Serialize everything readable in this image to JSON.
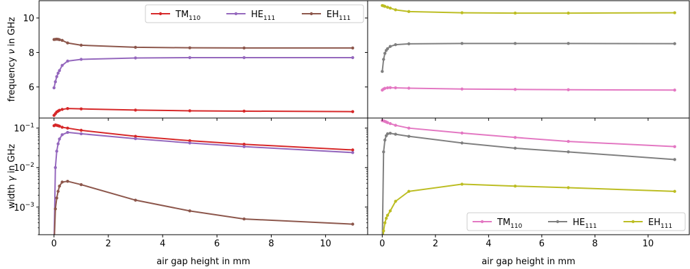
{
  "chart_data": [
    {
      "type": "line",
      "panel": "top-left",
      "ylabel": "frequency ν in GHz",
      "ylabel_main": "frequency ",
      "ylabel_symbol": "ν",
      "ylabel_tail": " in GHz",
      "xlabel": "",
      "xlim": [
        -0.55,
        11.55
      ],
      "ylim": [
        4.2,
        11.0
      ],
      "yscale": "linear",
      "yticks": [
        6,
        8,
        10
      ],
      "ytick_labels": [
        "6",
        "8",
        "10"
      ],
      "xticks": [
        0,
        2,
        4,
        6,
        8,
        10
      ],
      "xtick_labels": [],
      "legend": {
        "placement": "top-right",
        "ncol": 3
      },
      "series": [
        {
          "name": "TM",
          "name_sub": "110",
          "color": "#d62728",
          "x": [
            0.0,
            0.05,
            0.1,
            0.15,
            0.2,
            0.3,
            0.5,
            1,
            3,
            5,
            7,
            11
          ],
          "y": [
            4.35,
            4.45,
            4.55,
            4.6,
            4.65,
            4.7,
            4.75,
            4.73,
            4.66,
            4.62,
            4.6,
            4.57
          ]
        },
        {
          "name": "HE",
          "name_sub": "111",
          "color": "#9467bd",
          "x": [
            0.0,
            0.05,
            0.1,
            0.15,
            0.2,
            0.3,
            0.5,
            1,
            3,
            5,
            7,
            11
          ],
          "y": [
            5.95,
            6.3,
            6.6,
            6.8,
            6.95,
            7.25,
            7.5,
            7.6,
            7.68,
            7.7,
            7.7,
            7.7
          ]
        },
        {
          "name": "EH",
          "name_sub": "111",
          "color": "#8c564b",
          "x": [
            0.0,
            0.05,
            0.1,
            0.15,
            0.2,
            0.3,
            0.5,
            1,
            3,
            5,
            7,
            11
          ],
          "y": [
            8.75,
            8.76,
            8.77,
            8.76,
            8.74,
            8.7,
            8.55,
            8.42,
            8.3,
            8.27,
            8.26,
            8.26
          ]
        }
      ]
    },
    {
      "type": "line",
      "panel": "top-right",
      "ylabel": "",
      "xlabel": "",
      "xlim": [
        -0.55,
        11.55
      ],
      "ylim": [
        4.2,
        11.0
      ],
      "yscale": "linear",
      "yticks": [
        6,
        8,
        10
      ],
      "ytick_labels": [],
      "xticks": [
        0,
        2,
        4,
        6,
        8,
        10
      ],
      "xtick_labels": [],
      "series": [
        {
          "name": "TM",
          "name_sub": "110",
          "color": "#e377c2",
          "x": [
            0.0,
            0.05,
            0.1,
            0.2,
            0.3,
            0.5,
            1,
            3,
            5,
            7,
            11
          ],
          "y": [
            5.82,
            5.88,
            5.92,
            5.95,
            5.96,
            5.95,
            5.93,
            5.88,
            5.86,
            5.84,
            5.82
          ]
        },
        {
          "name": "HE",
          "name_sub": "111",
          "color": "#7f7f7f",
          "x": [
            0.0,
            0.05,
            0.1,
            0.15,
            0.2,
            0.3,
            0.5,
            1,
            3,
            5,
            7,
            11
          ],
          "y": [
            6.9,
            7.6,
            7.95,
            8.12,
            8.22,
            8.35,
            8.45,
            8.5,
            8.52,
            8.52,
            8.52,
            8.51
          ]
        },
        {
          "name": "EH",
          "name_sub": "111",
          "color": "#bcbd22",
          "x": [
            0.0,
            0.05,
            0.1,
            0.2,
            0.3,
            0.5,
            1,
            3,
            5,
            7,
            11
          ],
          "y": [
            10.72,
            10.7,
            10.67,
            10.62,
            10.57,
            10.47,
            10.37,
            10.3,
            10.28,
            10.28,
            10.3
          ]
        }
      ]
    },
    {
      "type": "line",
      "panel": "bottom-left",
      "ylabel": "width γ in GHz",
      "ylabel_main": "width ",
      "ylabel_symbol": "γ",
      "ylabel_tail": " in GHz",
      "xlabel": "air gap height in mm",
      "xlim": [
        -0.55,
        11.55
      ],
      "ylim": [
        0.0002,
        0.18
      ],
      "yscale": "log",
      "yticks": [
        0.001,
        0.01,
        0.1
      ],
      "ytick_labels": [
        {
          "base": "10",
          "exp": "−3"
        },
        {
          "base": "10",
          "exp": "−2"
        },
        {
          "base": "10",
          "exp": "−1"
        }
      ],
      "xticks": [
        0,
        2,
        4,
        6,
        8,
        10
      ],
      "xtick_labels": [
        "0",
        "2",
        "4",
        "6",
        "8",
        "10"
      ],
      "series": [
        {
          "name": "TM",
          "name_sub": "110",
          "color": "#d62728",
          "x": [
            0.0,
            0.05,
            0.1,
            0.15,
            0.2,
            0.3,
            0.5,
            1,
            3,
            5,
            7,
            11
          ],
          "y": [
            0.115,
            0.12,
            0.118,
            0.115,
            0.112,
            0.105,
            0.1,
            0.088,
            0.062,
            0.048,
            0.039,
            0.028
          ]
        },
        {
          "name": "HE",
          "name_sub": "111",
          "color": "#9467bd",
          "x": [
            0.0,
            0.05,
            0.1,
            0.15,
            0.2,
            0.3,
            0.5,
            1,
            3,
            5,
            7,
            11
          ],
          "y": [
            0.0001,
            0.01,
            0.026,
            0.04,
            0.053,
            0.068,
            0.078,
            0.072,
            0.054,
            0.042,
            0.034,
            0.024
          ]
        },
        {
          "name": "EH",
          "name_sub": "111",
          "color": "#8c564b",
          "x": [
            0.0,
            0.05,
            0.1,
            0.15,
            0.2,
            0.3,
            0.5,
            1,
            3,
            5,
            7,
            11
          ],
          "y": [
            0.0001,
            0.0009,
            0.0017,
            0.0025,
            0.0034,
            0.0043,
            0.0045,
            0.0037,
            0.0015,
            0.0008,
            0.0005,
            0.00037
          ]
        }
      ]
    },
    {
      "type": "line",
      "panel": "bottom-right",
      "ylabel": "",
      "xlabel": "air gap height in mm",
      "xlim": [
        -0.55,
        11.55
      ],
      "ylim": [
        0.0002,
        0.18
      ],
      "yscale": "log",
      "yticks": [
        0.001,
        0.01,
        0.1
      ],
      "ytick_labels": [],
      "xticks": [
        0,
        2,
        4,
        6,
        8,
        10
      ],
      "xtick_labels": [
        "0",
        "2",
        "4",
        "6",
        "8",
        "10"
      ],
      "legend": {
        "placement": "bottom-right",
        "ncol": 3
      },
      "series": [
        {
          "name": "TM",
          "name_sub": "110",
          "color": "#e377c2",
          "x": [
            0.0,
            0.05,
            0.1,
            0.15,
            0.2,
            0.3,
            0.5,
            1,
            3,
            5,
            7,
            11
          ],
          "y": [
            0.155,
            0.152,
            0.148,
            0.143,
            0.138,
            0.13,
            0.118,
            0.1,
            0.075,
            0.058,
            0.046,
            0.034
          ]
        },
        {
          "name": "HE",
          "name_sub": "111",
          "color": "#7f7f7f",
          "x": [
            0.0,
            0.05,
            0.1,
            0.15,
            0.2,
            0.3,
            0.5,
            1,
            3,
            5,
            7,
            11
          ],
          "y": [
            0.0001,
            0.025,
            0.05,
            0.064,
            0.072,
            0.074,
            0.07,
            0.062,
            0.042,
            0.031,
            0.025,
            0.016
          ]
        },
        {
          "name": "EH",
          "name_sub": "111",
          "color": "#bcbd22",
          "x": [
            0.0,
            0.05,
            0.1,
            0.15,
            0.2,
            0.3,
            0.5,
            1,
            3,
            5,
            7,
            11
          ],
          "y": [
            0.0001,
            0.00025,
            0.0004,
            0.00052,
            0.00062,
            0.0008,
            0.0014,
            0.0025,
            0.0038,
            0.0034,
            0.0031,
            0.0025
          ]
        }
      ]
    }
  ]
}
